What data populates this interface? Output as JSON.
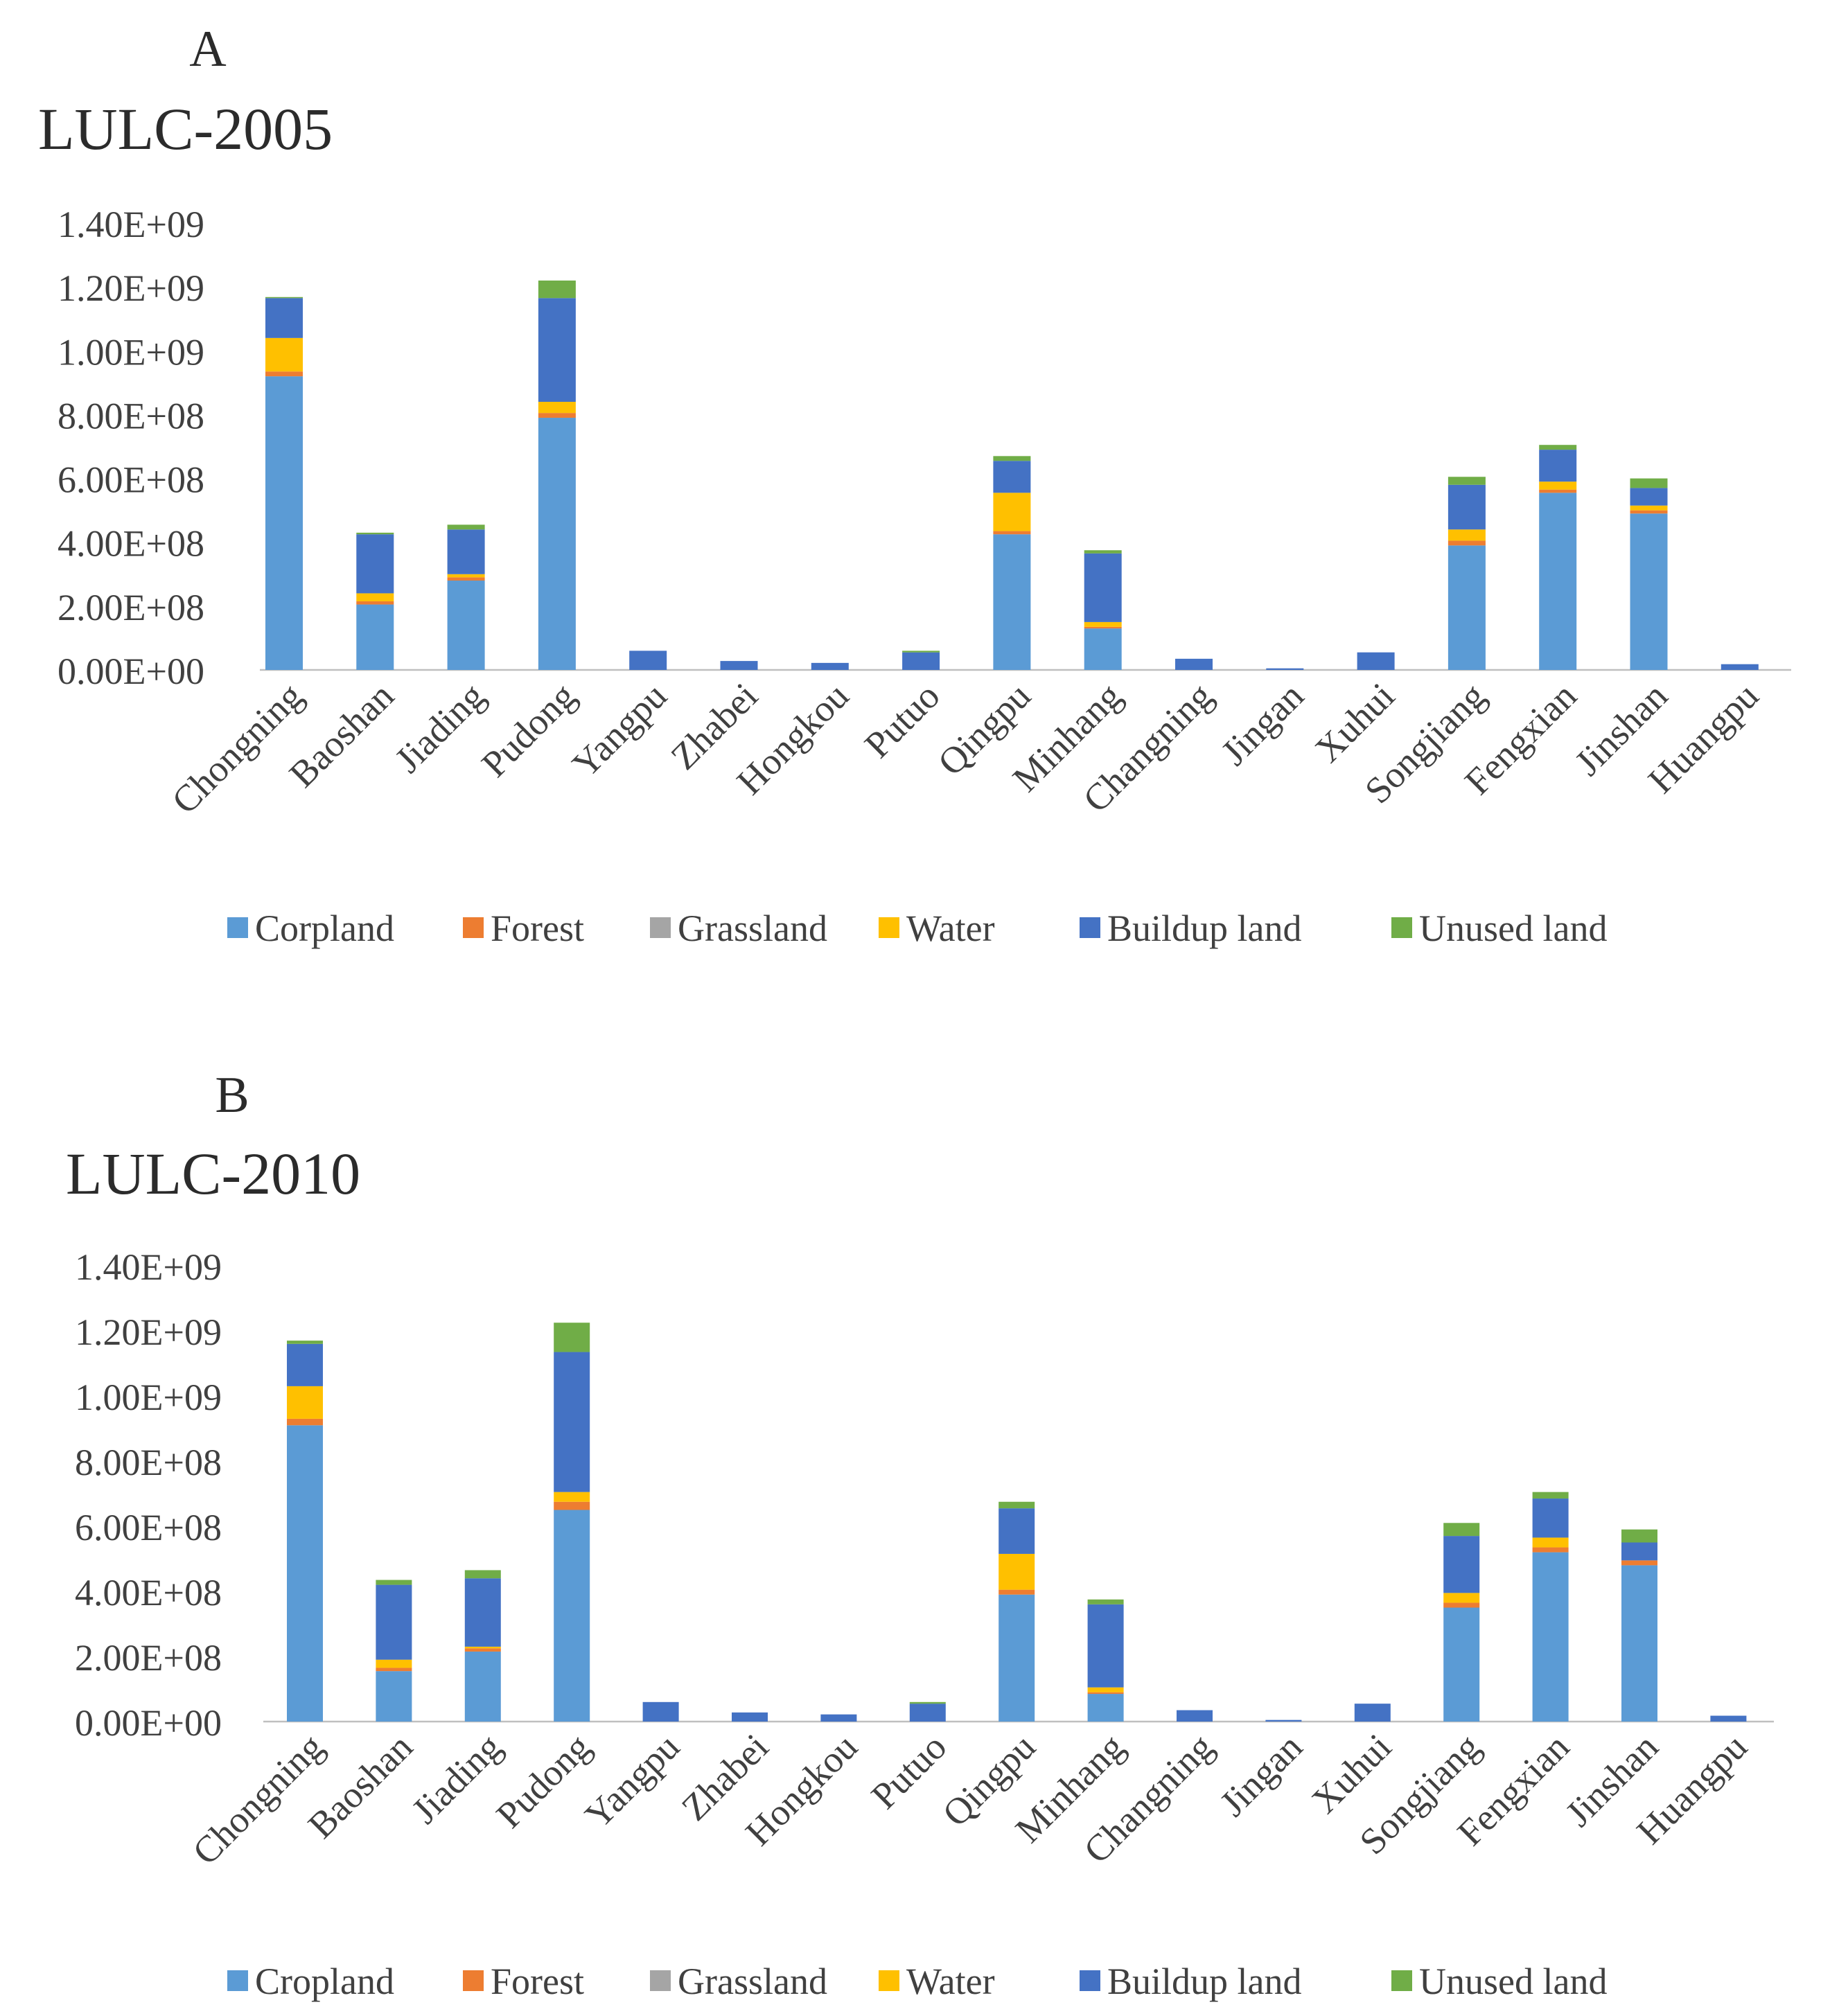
{
  "chart_data": [
    {
      "type": "bar",
      "stacked": true,
      "panel_label": "A",
      "title": "LULC-2005",
      "xlabel": "",
      "ylabel": "",
      "ylim": [
        0,
        1400000000
      ],
      "yticks": [
        "0.00E+00",
        "2.00E+08",
        "4.00E+08",
        "6.00E+08",
        "8.00E+08",
        "1.00E+09",
        "1.20E+09",
        "1.40E+09"
      ],
      "categories": [
        "Chongning",
        "Baoshan",
        "Jiading",
        "Pudong",
        "Yangpu",
        "Zhabei",
        "Hongkou",
        "Putuo",
        "Qingpu",
        "Minhang",
        "Changning",
        "Jingan",
        "Xuhui",
        "Songjiang",
        "Fengxian",
        "Jinshan",
        "Huangpu"
      ],
      "legend_position": "bottom",
      "series": [
        {
          "name": "Corpland",
          "color": "#5b9bd5",
          "values": [
            920000000,
            205000000,
            280000000,
            790000000,
            0,
            0,
            0,
            0,
            425000000,
            130000000,
            0,
            0,
            0,
            390000000,
            555000000,
            490000000,
            0
          ]
        },
        {
          "name": "Forest",
          "color": "#ed7d31",
          "values": [
            15000000,
            10000000,
            10000000,
            15000000,
            0,
            0,
            0,
            0,
            10000000,
            5000000,
            0,
            0,
            0,
            15000000,
            10000000,
            10000000,
            0
          ]
        },
        {
          "name": "Grassland",
          "color": "#a5a5a5",
          "values": [
            0,
            0,
            0,
            0,
            0,
            0,
            0,
            0,
            0,
            0,
            0,
            0,
            0,
            0,
            0,
            0,
            0
          ]
        },
        {
          "name": "Water",
          "color": "#ffc000",
          "values": [
            105000000,
            25000000,
            10000000,
            35000000,
            0,
            0,
            0,
            0,
            120000000,
            15000000,
            0,
            0,
            0,
            35000000,
            25000000,
            15000000,
            0
          ]
        },
        {
          "name": "Buildup land",
          "color": "#4472c4",
          "values": [
            125000000,
            185000000,
            140000000,
            325000000,
            60000000,
            28000000,
            22000000,
            55000000,
            100000000,
            215000000,
            35000000,
            5000000,
            55000000,
            140000000,
            100000000,
            55000000,
            18000000
          ]
        },
        {
          "name": "Unused land",
          "color": "#70ad47",
          "values": [
            2000000,
            5000000,
            15000000,
            55000000,
            0,
            0,
            0,
            5000000,
            15000000,
            10000000,
            0,
            0,
            0,
            25000000,
            15000000,
            30000000,
            0
          ]
        }
      ]
    },
    {
      "type": "bar",
      "stacked": true,
      "panel_label": "B",
      "title": "LULC-2010",
      "xlabel": "",
      "ylabel": "",
      "ylim": [
        0,
        1400000000
      ],
      "yticks": [
        "0.00E+00",
        "2.00E+08",
        "4.00E+08",
        "6.00E+08",
        "8.00E+08",
        "1.00E+09",
        "1.20E+09",
        "1.40E+09"
      ],
      "categories": [
        "Chongning",
        "Baoshan",
        "Jiading",
        "Pudong",
        "Yangpu",
        "Zhabei",
        "Hongkou",
        "Putuo",
        "Qingpu",
        "Minhang",
        "Changning",
        "Jingan",
        "Xuhui",
        "Songjiang",
        "Fengxian",
        "Jinshan",
        "Huangpu"
      ],
      "legend_position": "bottom",
      "series": [
        {
          "name": "Cropland",
          "color": "#5b9bd5",
          "values": [
            910000000,
            155000000,
            215000000,
            650000000,
            0,
            0,
            0,
            0,
            390000000,
            85000000,
            0,
            0,
            0,
            350000000,
            520000000,
            480000000,
            0
          ]
        },
        {
          "name": "Forest",
          "color": "#ed7d31",
          "values": [
            20000000,
            10000000,
            10000000,
            25000000,
            0,
            0,
            0,
            0,
            15000000,
            5000000,
            0,
            0,
            0,
            15000000,
            15000000,
            15000000,
            0
          ]
        },
        {
          "name": "Grassland",
          "color": "#a5a5a5",
          "values": [
            0,
            0,
            0,
            0,
            0,
            0,
            0,
            0,
            0,
            0,
            0,
            0,
            0,
            0,
            0,
            0,
            0
          ]
        },
        {
          "name": "Water",
          "color": "#ffc000",
          "values": [
            100000000,
            25000000,
            5000000,
            30000000,
            0,
            0,
            0,
            0,
            110000000,
            15000000,
            0,
            0,
            0,
            30000000,
            30000000,
            0,
            0
          ]
        },
        {
          "name": "Buildup land",
          "color": "#4472c4",
          "values": [
            130000000,
            230000000,
            210000000,
            430000000,
            60000000,
            28000000,
            22000000,
            55000000,
            140000000,
            255000000,
            35000000,
            5000000,
            55000000,
            175000000,
            120000000,
            55000000,
            18000000
          ]
        },
        {
          "name": "Unused land",
          "color": "#70ad47",
          "values": [
            10000000,
            15000000,
            25000000,
            90000000,
            0,
            0,
            0,
            5000000,
            20000000,
            15000000,
            0,
            0,
            0,
            40000000,
            20000000,
            40000000,
            0
          ]
        }
      ]
    }
  ]
}
